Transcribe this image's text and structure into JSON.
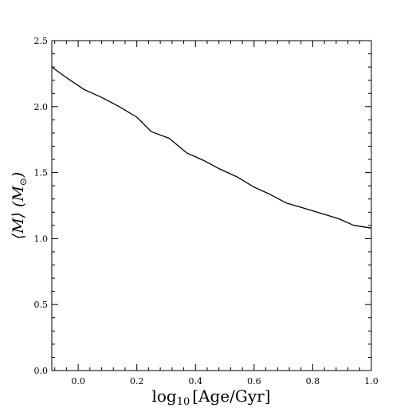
{
  "chart_data": {
    "type": "line",
    "title": "",
    "xlabel_parts": {
      "main": "log",
      "sub": "10",
      "rest": "[Age/Gyr]"
    },
    "ylabel_parts": {
      "prefix": "⟨M⟩ (M",
      "sub": "⊙",
      "suffix": ")"
    },
    "xlim": [
      -0.09,
      1.0
    ],
    "ylim": [
      0.0,
      2.5
    ],
    "x_ticks": [
      0.0,
      0.2,
      0.4,
      0.6,
      0.8,
      1.0
    ],
    "x_tick_labels": [
      "0.0",
      "0.2",
      "0.4",
      "0.6",
      "0.8",
      "1.0"
    ],
    "y_ticks": [
      0.0,
      0.5,
      1.0,
      1.5,
      2.0,
      2.5
    ],
    "y_tick_labels": [
      "0.0",
      "0.5",
      "1.0",
      "1.5",
      "2.0",
      "2.5"
    ],
    "grid": false,
    "legend": "none",
    "line_color": "#000000",
    "series": [
      {
        "x": [
          -0.09,
          -0.04,
          0.02,
          0.08,
          0.14,
          0.2,
          0.25,
          0.31,
          0.37,
          0.43,
          0.48,
          0.54,
          0.6,
          0.65,
          0.71,
          0.77,
          0.83,
          0.89,
          0.94,
          1.0
        ],
        "y": [
          2.3,
          2.22,
          2.13,
          2.07,
          2.0,
          1.92,
          1.81,
          1.76,
          1.65,
          1.59,
          1.53,
          1.47,
          1.39,
          1.34,
          1.27,
          1.23,
          1.19,
          1.15,
          1.1,
          1.08
        ]
      }
    ]
  }
}
